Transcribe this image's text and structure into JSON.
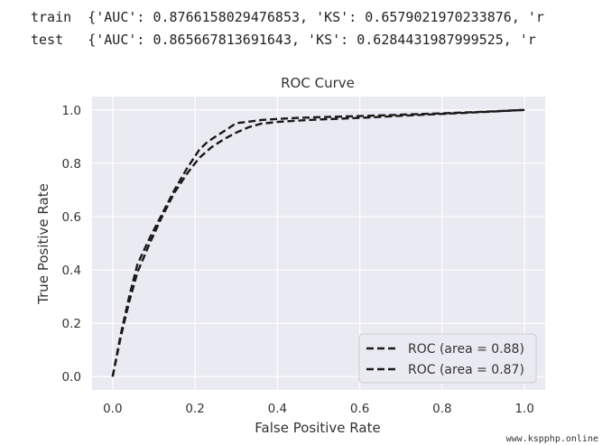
{
  "console": {
    "train": "train  {'AUC': 0.8766158029476853, 'KS': 0.6579021970233876, 'r",
    "test": "test   {'AUC': 0.865667813691643, 'KS': 0.6284431987999525, 'r"
  },
  "watermark": "www.kspphp.online",
  "chart_data": {
    "type": "line",
    "title": "ROC Curve",
    "xlabel": "False Positive Rate",
    "ylabel": "True Positive Rate",
    "xlim": [
      -0.05,
      1.05
    ],
    "ylim": [
      -0.05,
      1.05
    ],
    "xticks": [
      "0.0",
      "0.2",
      "0.4",
      "0.6",
      "0.8",
      "1.0"
    ],
    "yticks": [
      "0.0",
      "0.2",
      "0.4",
      "0.6",
      "0.8",
      "1.0"
    ],
    "grid": true,
    "legend_position": "lower-right",
    "colors": {
      "plot_bg": "#eaeaf2",
      "grid": "#ffffff",
      "line": "#1a1a1a"
    },
    "series": [
      {
        "name": "ROC (area = 0.88)",
        "x": [
          0.0,
          0.02,
          0.04,
          0.06,
          0.09,
          0.12,
          0.15,
          0.18,
          0.21,
          0.23,
          0.25,
          0.28,
          0.3,
          0.33,
          0.36,
          0.4,
          0.45,
          0.5,
          0.6,
          0.7,
          0.8,
          0.9,
          1.0
        ],
        "y": [
          0.0,
          0.16,
          0.3,
          0.42,
          0.52,
          0.61,
          0.7,
          0.78,
          0.85,
          0.88,
          0.9,
          0.93,
          0.95,
          0.956,
          0.962,
          0.966,
          0.97,
          0.973,
          0.977,
          0.982,
          0.987,
          0.993,
          1.0
        ]
      },
      {
        "name": "ROC (area = 0.87)",
        "x": [
          0.0,
          0.02,
          0.04,
          0.06,
          0.09,
          0.12,
          0.15,
          0.18,
          0.21,
          0.24,
          0.27,
          0.3,
          0.33,
          0.36,
          0.4,
          0.45,
          0.5,
          0.6,
          0.7,
          0.8,
          0.9,
          1.0
        ],
        "y": [
          0.0,
          0.15,
          0.28,
          0.39,
          0.5,
          0.6,
          0.69,
          0.76,
          0.82,
          0.86,
          0.89,
          0.915,
          0.935,
          0.948,
          0.955,
          0.96,
          0.964,
          0.97,
          0.978,
          0.985,
          0.992,
          1.0
        ]
      }
    ]
  }
}
